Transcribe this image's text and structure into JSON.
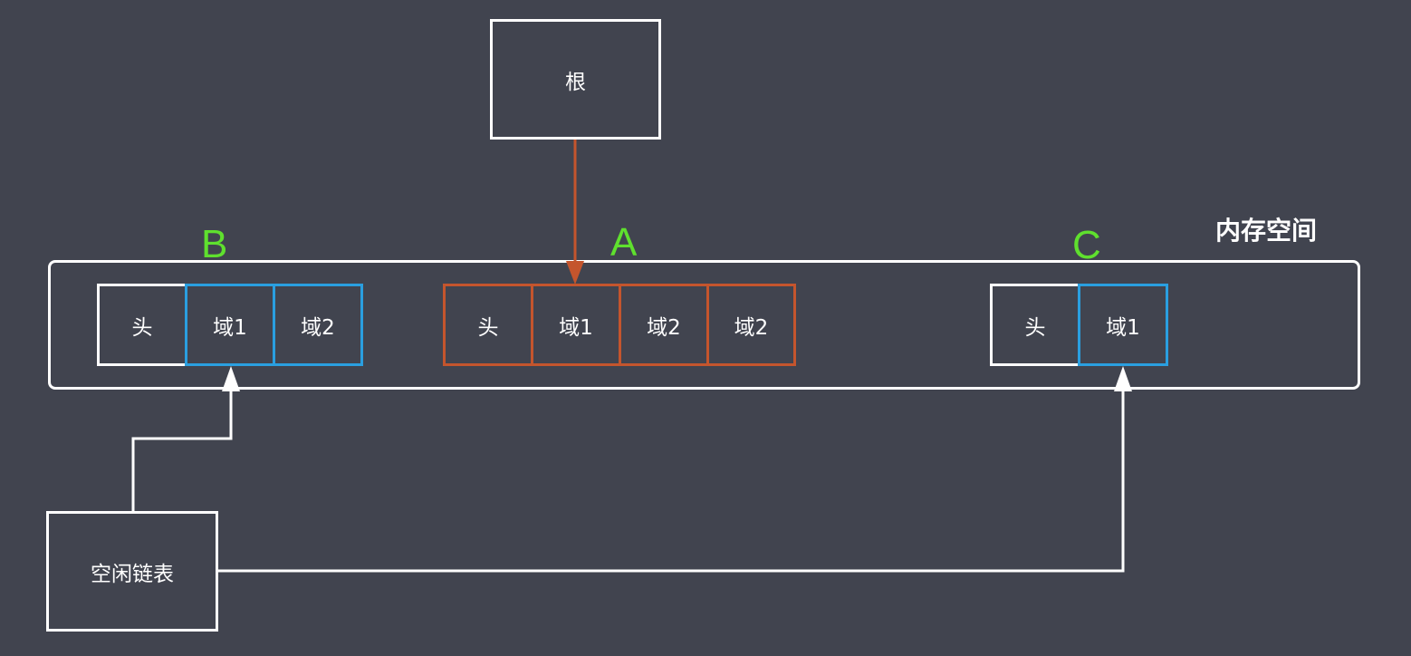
{
  "colors": {
    "background": "#41444f",
    "line": "#ffffff",
    "field_blue": "#2a9fe0",
    "reachable_orange": "#c4552d",
    "label_green": "#5fe02e"
  },
  "root": {
    "label": "根"
  },
  "memory": {
    "label": "内存空间"
  },
  "free_list": {
    "label": "空闲链表"
  },
  "objects": {
    "B": {
      "letter": "B",
      "head": "头",
      "field1": "域1",
      "field2": "域2"
    },
    "A": {
      "letter": "A",
      "head": "头",
      "field1": "域1",
      "field2": "域2",
      "field3": "域2"
    },
    "C": {
      "letter": "C",
      "head": "头",
      "field1": "域1"
    }
  }
}
